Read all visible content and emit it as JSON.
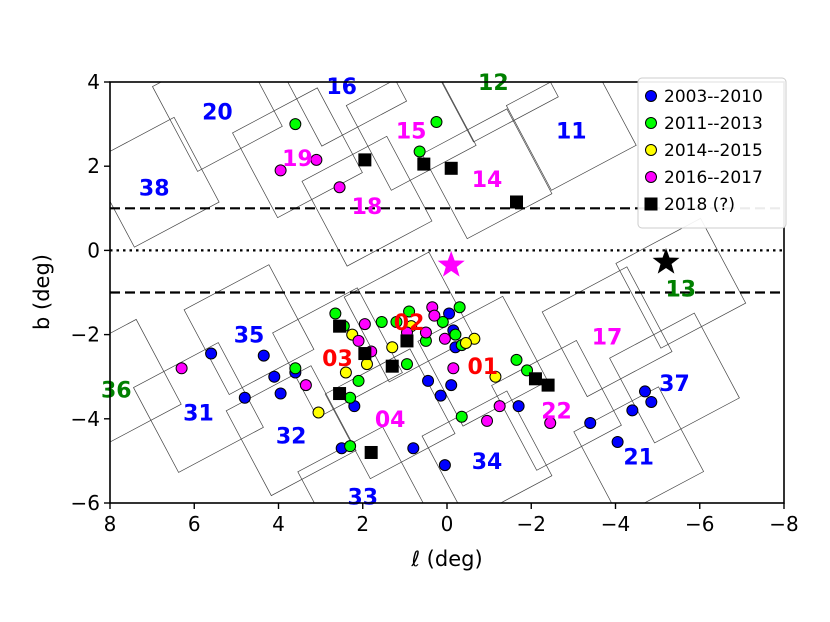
{
  "chart_data": {
    "type": "scatter",
    "title": "",
    "xlabel": "ℓ (deg)",
    "ylabel": "b (deg)",
    "xlim": [
      8,
      -8
    ],
    "ylim": [
      -6,
      4
    ],
    "xticks": [
      8,
      6,
      4,
      2,
      0,
      -2,
      -4,
      -6,
      -8
    ],
    "xtick_labels": [
      "8",
      "6",
      "4",
      "2",
      "0",
      "−2",
      "−4",
      "−6",
      "−8"
    ],
    "yticks": [
      4,
      2,
      0,
      -2,
      -4,
      -6
    ],
    "ytick_labels": [
      "4",
      "2",
      "0",
      "−2",
      "−4",
      "−6"
    ],
    "grid": false,
    "legend_position": "top-right",
    "reference_lines": [
      {
        "y": 1,
        "style": "dashed"
      },
      {
        "y": 0,
        "style": "dotted"
      },
      {
        "y": -1,
        "style": "dashed"
      }
    ],
    "star_markers": [
      {
        "l": -0.1,
        "b": -0.35,
        "color": "#ff00ff"
      },
      {
        "l": -5.2,
        "b": -0.28,
        "color": "#000000"
      }
    ],
    "fields": [
      {
        "label": "01",
        "color": "#ff0000",
        "l": -0.85,
        "b": -2.75
      },
      {
        "label": "02",
        "color": "#ff0000",
        "l": 0.9,
        "b": -1.7
      },
      {
        "label": "03",
        "color": "#ff0000",
        "l": 2.6,
        "b": -2.55
      },
      {
        "label": "04",
        "color": "#ff00ff",
        "l": 1.35,
        "b": -4.0
      },
      {
        "label": "11",
        "color": "#0000ff",
        "l": -2.95,
        "b": 2.85
      },
      {
        "label": "12",
        "color": "#008000",
        "l": -1.1,
        "b": 4.0
      },
      {
        "label": "13",
        "color": "#008000",
        "l": -5.55,
        "b": -0.9
      },
      {
        "label": "14",
        "color": "#ff00ff",
        "l": -0.95,
        "b": 1.7
      },
      {
        "label": "15",
        "color": "#ff00ff",
        "l": 0.85,
        "b": 2.85
      },
      {
        "label": "16",
        "color": "#0000ff",
        "l": 2.5,
        "b": 3.9
      },
      {
        "label": "17",
        "color": "#ff00ff",
        "l": -3.8,
        "b": -2.05
      },
      {
        "label": "18",
        "color": "#ff00ff",
        "l": 1.9,
        "b": 1.05
      },
      {
        "label": "19",
        "color": "#ff00ff",
        "l": 3.55,
        "b": 2.2
      },
      {
        "label": "20",
        "color": "#0000ff",
        "l": 5.45,
        "b": 3.3
      },
      {
        "label": "21",
        "color": "#0000ff",
        "l": -4.55,
        "b": -4.9
      },
      {
        "label": "22",
        "color": "#ff00ff",
        "l": -2.6,
        "b": -3.8
      },
      {
        "label": "31",
        "color": "#0000ff",
        "l": 5.9,
        "b": -3.85
      },
      {
        "label": "32",
        "color": "#0000ff",
        "l": 3.7,
        "b": -4.4
      },
      {
        "label": "33",
        "color": "#0000ff",
        "l": 2.0,
        "b": -5.85
      },
      {
        "label": "34",
        "color": "#0000ff",
        "l": -0.95,
        "b": -5.0
      },
      {
        "label": "35",
        "color": "#0000ff",
        "l": 4.7,
        "b": -2.0
      },
      {
        "label": "36",
        "color": "#008000",
        "l": 7.85,
        "b": -3.3
      },
      {
        "label": "37",
        "color": "#0000ff",
        "l": -5.4,
        "b": -3.15
      },
      {
        "label": "38",
        "color": "#0000ff",
        "l": 6.95,
        "b": 1.5
      }
    ],
    "series": [
      {
        "name": "2003--2010",
        "marker": "circle",
        "color": "#0000ff",
        "points": [
          [
            5.6,
            -2.45
          ],
          [
            4.8,
            -3.5
          ],
          [
            4.35,
            -2.5
          ],
          [
            4.1,
            -3.0
          ],
          [
            3.95,
            -3.4
          ],
          [
            3.6,
            -2.9
          ],
          [
            2.5,
            -4.7
          ],
          [
            2.2,
            -3.7
          ],
          [
            0.8,
            -4.7
          ],
          [
            0.45,
            -3.1
          ],
          [
            0.15,
            -3.45
          ],
          [
            0.05,
            -5.1
          ],
          [
            -0.05,
            -1.5
          ],
          [
            -0.15,
            -1.9
          ],
          [
            -0.2,
            -2.3
          ],
          [
            -0.1,
            -3.2
          ],
          [
            -1.7,
            -3.7
          ],
          [
            -3.4,
            -4.1
          ],
          [
            -4.05,
            -4.55
          ],
          [
            -4.4,
            -3.8
          ],
          [
            -4.7,
            -3.35
          ],
          [
            -4.85,
            -3.6
          ]
        ]
      },
      {
        "name": "2011--2013",
        "marker": "circle",
        "color": "#00ff00",
        "points": [
          [
            3.6,
            3.0
          ],
          [
            0.65,
            2.35
          ],
          [
            0.25,
            3.05
          ],
          [
            2.65,
            -1.5
          ],
          [
            2.45,
            -1.8
          ],
          [
            1.55,
            -1.7
          ],
          [
            2.3,
            -3.5
          ],
          [
            2.1,
            -3.1
          ],
          [
            2.3,
            -4.65
          ],
          [
            1.2,
            -1.7
          ],
          [
            0.9,
            -1.45
          ],
          [
            0.95,
            -2.7
          ],
          [
            0.1,
            -1.7
          ],
          [
            -0.2,
            -2.0
          ],
          [
            -0.35,
            -2.25
          ],
          [
            -0.3,
            -1.35
          ],
          [
            0.5,
            -2.15
          ],
          [
            -0.35,
            -3.95
          ],
          [
            -1.65,
            -2.6
          ],
          [
            -1.9,
            -2.85
          ],
          [
            3.6,
            -2.8
          ]
        ]
      },
      {
        "name": "2014--2015",
        "marker": "circle",
        "color": "#ffff00",
        "points": [
          [
            2.25,
            -2.0
          ],
          [
            2.4,
            -2.9
          ],
          [
            1.9,
            -2.7
          ],
          [
            1.3,
            -2.3
          ],
          [
            0.85,
            -1.8
          ],
          [
            -0.65,
            -2.1
          ],
          [
            -0.45,
            -2.2
          ],
          [
            -1.15,
            -3.0
          ],
          [
            3.05,
            -3.85
          ]
        ]
      },
      {
        "name": "2016--2017",
        "marker": "circle",
        "color": "#ff00ff",
        "points": [
          [
            6.3,
            -2.8
          ],
          [
            3.95,
            1.9
          ],
          [
            3.1,
            2.15
          ],
          [
            2.55,
            1.5
          ],
          [
            2.1,
            -2.15
          ],
          [
            1.95,
            -1.75
          ],
          [
            1.8,
            -2.4
          ],
          [
            3.35,
            -3.2
          ],
          [
            0.95,
            -1.95
          ],
          [
            0.5,
            -1.95
          ],
          [
            0.35,
            -1.35
          ],
          [
            0.3,
            -1.55
          ],
          [
            0.05,
            -2.1
          ],
          [
            -0.15,
            -2.8
          ],
          [
            -0.95,
            -4.05
          ],
          [
            -1.25,
            -3.7
          ],
          [
            -2.45,
            -4.1
          ]
        ]
      },
      {
        "name": "2018 (?)",
        "marker": "square",
        "color": "#000000",
        "points": [
          [
            1.95,
            2.15
          ],
          [
            0.55,
            2.05
          ],
          [
            -0.1,
            1.95
          ],
          [
            -1.65,
            1.15
          ],
          [
            2.55,
            -1.8
          ],
          [
            1.95,
            -2.45
          ],
          [
            1.3,
            -2.75
          ],
          [
            0.95,
            -2.15
          ],
          [
            -2.1,
            -3.05
          ],
          [
            -2.4,
            -3.2
          ],
          [
            2.55,
            -3.4
          ],
          [
            1.8,
            -4.8
          ]
        ]
      }
    ]
  }
}
